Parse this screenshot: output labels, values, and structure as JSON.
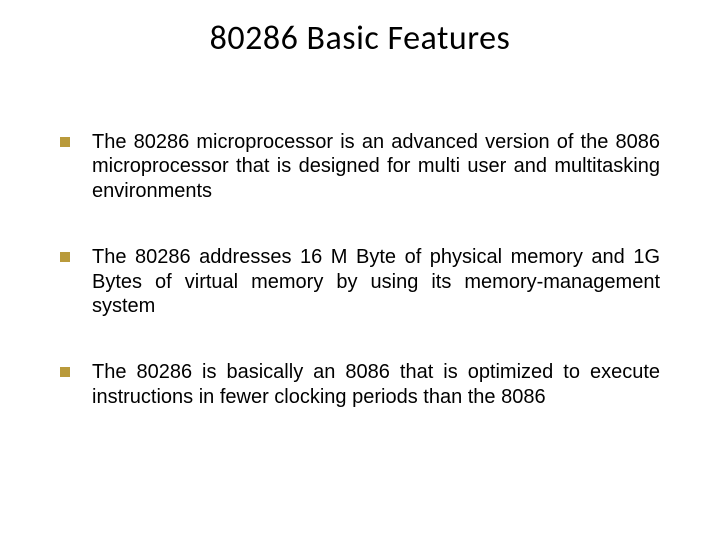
{
  "slide": {
    "title": "80286 Basic Features",
    "title_fontsize": 34,
    "title_color": "#000000",
    "title_weight": "400",
    "background_color": "#ffffff",
    "bullet": {
      "color": "#b99a3b",
      "size": 10,
      "shape": "square"
    },
    "body_fontsize": 20,
    "body_color": "#000000",
    "items": [
      {
        "text": "The 80286 microprocessor is an advanced version of the 8086 microprocessor that is designed for multi user and multitasking environments"
      },
      {
        "text": "The 80286 addresses 16 M Byte of physical memory and 1G Bytes of virtual memory by using its memory-management system"
      },
      {
        "text": "The 80286 is basically an 8086 that is optimized to execute instructions in fewer clocking periods than the 8086"
      }
    ]
  }
}
